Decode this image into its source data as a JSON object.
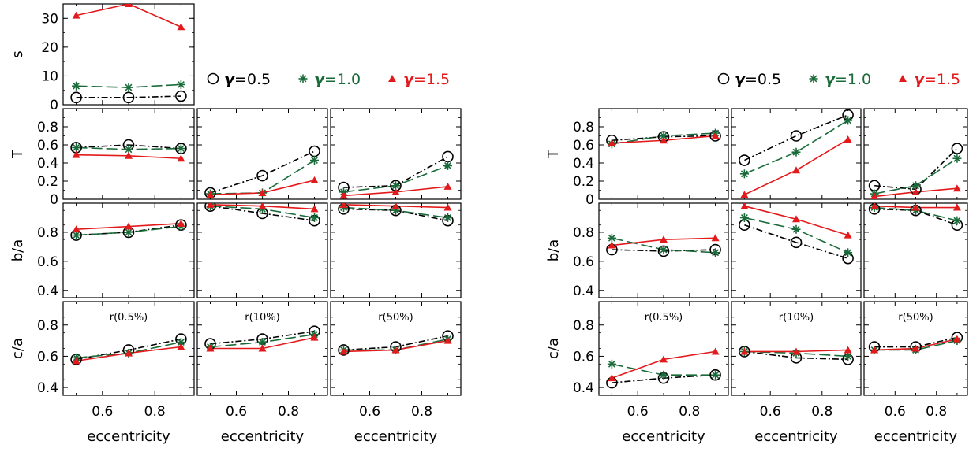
{
  "figure": {
    "xlabel": "eccentricity",
    "ylabels": {
      "s": "s",
      "T": "T",
      "ba": "b/a",
      "ca": "c/a"
    },
    "legend": {
      "prefix": "γ",
      "entries": [
        {
          "label": "=0.5",
          "color": "#000000"
        },
        {
          "label": "=1.0",
          "color": "#1a6b3a"
        },
        {
          "label": "=1.5",
          "color": "#e31a1c"
        }
      ]
    },
    "colors": {
      "g05": "#000000",
      "g10": "#1a6b3a",
      "g15": "#e31a1c"
    }
  },
  "chart_data": [
    {
      "type": "line",
      "id": "L_s",
      "group": "left",
      "column": 0,
      "row": "s",
      "ylabel": "s",
      "ylim": [
        0,
        35
      ],
      "yticks": [
        0,
        10,
        20,
        30
      ],
      "x": [
        0.5,
        0.7,
        0.9
      ],
      "xlim": [
        0.45,
        0.95
      ],
      "xticks": [
        0.6,
        0.8
      ],
      "series": [
        {
          "name": "γ=0.5",
          "values": [
            2.5,
            2.5,
            3
          ]
        },
        {
          "name": "γ=1.0",
          "values": [
            6.5,
            6,
            7
          ]
        },
        {
          "name": "γ=1.5",
          "values": [
            31,
            35,
            27
          ]
        }
      ]
    },
    {
      "type": "line",
      "id": "L_T_0",
      "group": "left",
      "column": 0,
      "row": "T",
      "ylabel": "T",
      "ylim": [
        0,
        1
      ],
      "yticks": [
        0,
        0.2,
        0.4,
        0.6,
        0.8
      ],
      "refline": 0.5,
      "x": [
        0.5,
        0.7,
        0.9
      ],
      "xlim": [
        0.45,
        0.95
      ],
      "xticks": [
        0.6,
        0.8
      ],
      "series": [
        {
          "name": "γ=0.5",
          "values": [
            0.57,
            0.6,
            0.56
          ]
        },
        {
          "name": "γ=1.0",
          "values": [
            0.57,
            0.55,
            0.56
          ]
        },
        {
          "name": "γ=1.5",
          "values": [
            0.49,
            0.48,
            0.45
          ]
        }
      ]
    },
    {
      "type": "line",
      "id": "L_T_1",
      "group": "left",
      "column": 1,
      "row": "T",
      "ylabel": "T",
      "ylim": [
        0,
        1
      ],
      "yticks": [
        0,
        0.2,
        0.4,
        0.6,
        0.8
      ],
      "refline": 0.5,
      "x": [
        0.5,
        0.7,
        0.9
      ],
      "xlim": [
        0.45,
        0.95
      ],
      "xticks": [
        0.6,
        0.8
      ],
      "series": [
        {
          "name": "γ=0.5",
          "values": [
            0.07,
            0.26,
            0.53
          ]
        },
        {
          "name": "γ=1.0",
          "values": [
            0.06,
            0.07,
            0.43
          ]
        },
        {
          "name": "γ=1.5",
          "values": [
            0.05,
            0.07,
            0.21
          ]
        }
      ]
    },
    {
      "type": "line",
      "id": "L_T_2",
      "group": "left",
      "column": 2,
      "row": "T",
      "ylabel": "T",
      "ylim": [
        0,
        1
      ],
      "yticks": [
        0,
        0.2,
        0.4,
        0.6,
        0.8
      ],
      "refline": 0.5,
      "x": [
        0.5,
        0.7,
        0.9
      ],
      "xlim": [
        0.45,
        0.95
      ],
      "xticks": [
        0.6,
        0.8
      ],
      "series": [
        {
          "name": "γ=0.5",
          "values": [
            0.13,
            0.15,
            0.47
          ]
        },
        {
          "name": "γ=1.0",
          "values": [
            0.08,
            0.15,
            0.37
          ]
        },
        {
          "name": "γ=1.5",
          "values": [
            0.04,
            0.08,
            0.14
          ]
        }
      ]
    },
    {
      "type": "line",
      "id": "L_ba_0",
      "group": "left",
      "column": 0,
      "row": "ba",
      "ylabel": "b/a",
      "ylim": [
        0.35,
        1.0
      ],
      "yticks": [
        0.4,
        0.6,
        0.8
      ],
      "x": [
        0.5,
        0.7,
        0.9
      ],
      "xlim": [
        0.45,
        0.95
      ],
      "xticks": [
        0.6,
        0.8
      ],
      "series": [
        {
          "name": "γ=0.5",
          "values": [
            0.78,
            0.8,
            0.85
          ]
        },
        {
          "name": "γ=1.0",
          "values": [
            0.78,
            0.8,
            0.84
          ]
        },
        {
          "name": "γ=1.5",
          "values": [
            0.82,
            0.84,
            0.86
          ]
        }
      ]
    },
    {
      "type": "line",
      "id": "L_ba_1",
      "group": "left",
      "column": 1,
      "row": "ba",
      "ylabel": "b/a",
      "ylim": [
        0.35,
        1.0
      ],
      "yticks": [
        0.4,
        0.6,
        0.8
      ],
      "x": [
        0.5,
        0.7,
        0.9
      ],
      "xlim": [
        0.45,
        0.95
      ],
      "xticks": [
        0.6,
        0.8
      ],
      "series": [
        {
          "name": "γ=0.5",
          "values": [
            0.98,
            0.93,
            0.88
          ]
        },
        {
          "name": "γ=1.0",
          "values": [
            0.98,
            0.96,
            0.9
          ]
        },
        {
          "name": "γ=1.5",
          "values": [
            0.99,
            0.98,
            0.96
          ]
        }
      ]
    },
    {
      "type": "line",
      "id": "L_ba_2",
      "group": "left",
      "column": 2,
      "row": "ba",
      "ylabel": "b/a",
      "ylim": [
        0.35,
        1.0
      ],
      "yticks": [
        0.4,
        0.6,
        0.8
      ],
      "x": [
        0.5,
        0.7,
        0.9
      ],
      "xlim": [
        0.45,
        0.95
      ],
      "xticks": [
        0.6,
        0.8
      ],
      "series": [
        {
          "name": "γ=0.5",
          "values": [
            0.96,
            0.95,
            0.88
          ]
        },
        {
          "name": "γ=1.0",
          "values": [
            0.97,
            0.95,
            0.9
          ]
        },
        {
          "name": "γ=1.5",
          "values": [
            0.99,
            0.98,
            0.97
          ]
        }
      ]
    },
    {
      "type": "line",
      "id": "L_ca_0",
      "group": "left",
      "column": 0,
      "row": "ca",
      "ylabel": "c/a",
      "ylim": [
        0.35,
        0.95
      ],
      "yticks": [
        0.4,
        0.6,
        0.8
      ],
      "annotation": "r(0.5%)",
      "x": [
        0.5,
        0.7,
        0.9
      ],
      "xlim": [
        0.45,
        0.95
      ],
      "xticks": [
        0.6,
        0.8
      ],
      "series": [
        {
          "name": "γ=0.5",
          "values": [
            0.58,
            0.64,
            0.71
          ]
        },
        {
          "name": "γ=1.0",
          "values": [
            0.59,
            0.62,
            0.69
          ]
        },
        {
          "name": "γ=1.5",
          "values": [
            0.57,
            0.62,
            0.66
          ]
        }
      ]
    },
    {
      "type": "line",
      "id": "L_ca_1",
      "group": "left",
      "column": 1,
      "row": "ca",
      "ylabel": "c/a",
      "ylim": [
        0.35,
        0.95
      ],
      "yticks": [
        0.4,
        0.6,
        0.8
      ],
      "annotation": "r(10%)",
      "x": [
        0.5,
        0.7,
        0.9
      ],
      "xlim": [
        0.45,
        0.95
      ],
      "xticks": [
        0.6,
        0.8
      ],
      "series": [
        {
          "name": "γ=0.5",
          "values": [
            0.68,
            0.71,
            0.76
          ]
        },
        {
          "name": "γ=1.0",
          "values": [
            0.66,
            0.69,
            0.74
          ]
        },
        {
          "name": "γ=1.5",
          "values": [
            0.65,
            0.65,
            0.72
          ]
        }
      ]
    },
    {
      "type": "line",
      "id": "L_ca_2",
      "group": "left",
      "column": 2,
      "row": "ca",
      "ylabel": "c/a",
      "ylim": [
        0.35,
        0.95
      ],
      "yticks": [
        0.4,
        0.6,
        0.8
      ],
      "annotation": "r(50%)",
      "x": [
        0.5,
        0.7,
        0.9
      ],
      "xlim": [
        0.45,
        0.95
      ],
      "xticks": [
        0.6,
        0.8
      ],
      "series": [
        {
          "name": "γ=0.5",
          "values": [
            0.64,
            0.66,
            0.73
          ]
        },
        {
          "name": "γ=1.0",
          "values": [
            0.64,
            0.64,
            0.71
          ]
        },
        {
          "name": "γ=1.5",
          "values": [
            0.63,
            0.64,
            0.7
          ]
        }
      ]
    },
    {
      "type": "line",
      "id": "R_T_0",
      "group": "right",
      "column": 0,
      "row": "T",
      "ylabel": "T",
      "ylim": [
        0,
        1
      ],
      "yticks": [
        0,
        0.2,
        0.4,
        0.6,
        0.8
      ],
      "refline": 0.5,
      "x": [
        0.5,
        0.7,
        0.9
      ],
      "xlim": [
        0.45,
        0.95
      ],
      "xticks": [
        0.6,
        0.8
      ],
      "series": [
        {
          "name": "γ=0.5",
          "values": [
            0.65,
            0.69,
            0.7
          ]
        },
        {
          "name": "γ=1.0",
          "values": [
            0.61,
            0.7,
            0.73
          ]
        },
        {
          "name": "γ=1.5",
          "values": [
            0.62,
            0.65,
            0.7
          ]
        }
      ]
    },
    {
      "type": "line",
      "id": "R_T_1",
      "group": "right",
      "column": 1,
      "row": "T",
      "ylabel": "T",
      "ylim": [
        0,
        1
      ],
      "yticks": [
        0,
        0.2,
        0.4,
        0.6,
        0.8
      ],
      "refline": 0.5,
      "x": [
        0.5,
        0.7,
        0.9
      ],
      "xlim": [
        0.45,
        0.95
      ],
      "xticks": [
        0.6,
        0.8
      ],
      "series": [
        {
          "name": "γ=0.5",
          "values": [
            0.43,
            0.7,
            0.93
          ]
        },
        {
          "name": "γ=1.0",
          "values": [
            0.28,
            0.52,
            0.87
          ]
        },
        {
          "name": "γ=1.5",
          "values": [
            0.05,
            0.32,
            0.66
          ]
        }
      ]
    },
    {
      "type": "line",
      "id": "R_T_2",
      "group": "right",
      "column": 2,
      "row": "T",
      "ylabel": "T",
      "ylim": [
        0,
        1
      ],
      "yticks": [
        0,
        0.2,
        0.4,
        0.6,
        0.8
      ],
      "refline": 0.5,
      "x": [
        0.5,
        0.7,
        0.9
      ],
      "xlim": [
        0.45,
        0.95
      ],
      "xticks": [
        0.6,
        0.8
      ],
      "series": [
        {
          "name": "γ=0.5",
          "values": [
            0.15,
            0.11,
            0.56
          ]
        },
        {
          "name": "γ=1.0",
          "values": [
            0.06,
            0.15,
            0.45
          ]
        },
        {
          "name": "γ=1.5",
          "values": [
            0.03,
            0.08,
            0.12
          ]
        }
      ]
    },
    {
      "type": "line",
      "id": "R_ba_0",
      "group": "right",
      "column": 0,
      "row": "ba",
      "ylabel": "b/a",
      "ylim": [
        0.35,
        1.0
      ],
      "yticks": [
        0.4,
        0.6,
        0.8
      ],
      "x": [
        0.5,
        0.7,
        0.9
      ],
      "xlim": [
        0.45,
        0.95
      ],
      "xticks": [
        0.6,
        0.8
      ],
      "series": [
        {
          "name": "γ=0.5",
          "values": [
            0.68,
            0.67,
            0.68
          ]
        },
        {
          "name": "γ=1.0",
          "values": [
            0.76,
            0.68,
            0.66
          ]
        },
        {
          "name": "γ=1.5",
          "values": [
            0.71,
            0.75,
            0.76
          ]
        }
      ]
    },
    {
      "type": "line",
      "id": "R_ba_1",
      "group": "right",
      "column": 1,
      "row": "ba",
      "ylabel": "b/a",
      "ylim": [
        0.35,
        1.0
      ],
      "yticks": [
        0.4,
        0.6,
        0.8
      ],
      "x": [
        0.5,
        0.7,
        0.9
      ],
      "xlim": [
        0.45,
        0.95
      ],
      "xticks": [
        0.6,
        0.8
      ],
      "series": [
        {
          "name": "γ=0.5",
          "values": [
            0.85,
            0.73,
            0.62
          ]
        },
        {
          "name": "γ=1.0",
          "values": [
            0.9,
            0.82,
            0.66
          ]
        },
        {
          "name": "γ=1.5",
          "values": [
            0.98,
            0.89,
            0.78
          ]
        }
      ]
    },
    {
      "type": "line",
      "id": "R_ba_2",
      "group": "right",
      "column": 2,
      "row": "ba",
      "ylabel": "b/a",
      "ylim": [
        0.35,
        1.0
      ],
      "yticks": [
        0.4,
        0.6,
        0.8
      ],
      "x": [
        0.5,
        0.7,
        0.9
      ],
      "xlim": [
        0.45,
        0.95
      ],
      "xticks": [
        0.6,
        0.8
      ],
      "series": [
        {
          "name": "γ=0.5",
          "values": [
            0.96,
            0.95,
            0.85
          ]
        },
        {
          "name": "γ=1.0",
          "values": [
            0.97,
            0.95,
            0.88
          ]
        },
        {
          "name": "γ=1.5",
          "values": [
            0.98,
            0.97,
            0.97
          ]
        }
      ]
    },
    {
      "type": "line",
      "id": "R_ca_0",
      "group": "right",
      "column": 0,
      "row": "ca",
      "ylabel": "c/a",
      "ylim": [
        0.35,
        0.95
      ],
      "yticks": [
        0.4,
        0.6,
        0.8
      ],
      "annotation": "r(0.5%)",
      "x": [
        0.5,
        0.7,
        0.9
      ],
      "xlim": [
        0.45,
        0.95
      ],
      "xticks": [
        0.6,
        0.8
      ],
      "series": [
        {
          "name": "γ=0.5",
          "values": [
            0.43,
            0.46,
            0.48
          ]
        },
        {
          "name": "γ=1.0",
          "values": [
            0.55,
            0.48,
            0.48
          ]
        },
        {
          "name": "γ=1.5",
          "values": [
            0.46,
            0.58,
            0.63
          ]
        }
      ]
    },
    {
      "type": "line",
      "id": "R_ca_1",
      "group": "right",
      "column": 1,
      "row": "ca",
      "ylabel": "c/a",
      "ylim": [
        0.35,
        0.95
      ],
      "yticks": [
        0.4,
        0.6,
        0.8
      ],
      "annotation": "r(10%)",
      "x": [
        0.5,
        0.7,
        0.9
      ],
      "xlim": [
        0.45,
        0.95
      ],
      "xticks": [
        0.6,
        0.8
      ],
      "series": [
        {
          "name": "γ=0.5",
          "values": [
            0.63,
            0.59,
            0.58
          ]
        },
        {
          "name": "γ=1.0",
          "values": [
            0.63,
            0.62,
            0.6
          ]
        },
        {
          "name": "γ=1.5",
          "values": [
            0.63,
            0.63,
            0.64
          ]
        }
      ]
    },
    {
      "type": "line",
      "id": "R_ca_2",
      "group": "right",
      "column": 2,
      "row": "ca",
      "ylabel": "c/a",
      "ylim": [
        0.35,
        0.95
      ],
      "yticks": [
        0.4,
        0.6,
        0.8
      ],
      "annotation": "r(50%)",
      "x": [
        0.5,
        0.7,
        0.9
      ],
      "xlim": [
        0.45,
        0.95
      ],
      "xticks": [
        0.6,
        0.8
      ],
      "series": [
        {
          "name": "γ=0.5",
          "values": [
            0.66,
            0.66,
            0.72
          ]
        },
        {
          "name": "γ=1.0",
          "values": [
            0.64,
            0.64,
            0.7
          ]
        },
        {
          "name": "γ=1.5",
          "values": [
            0.64,
            0.65,
            0.71
          ]
        }
      ]
    }
  ]
}
